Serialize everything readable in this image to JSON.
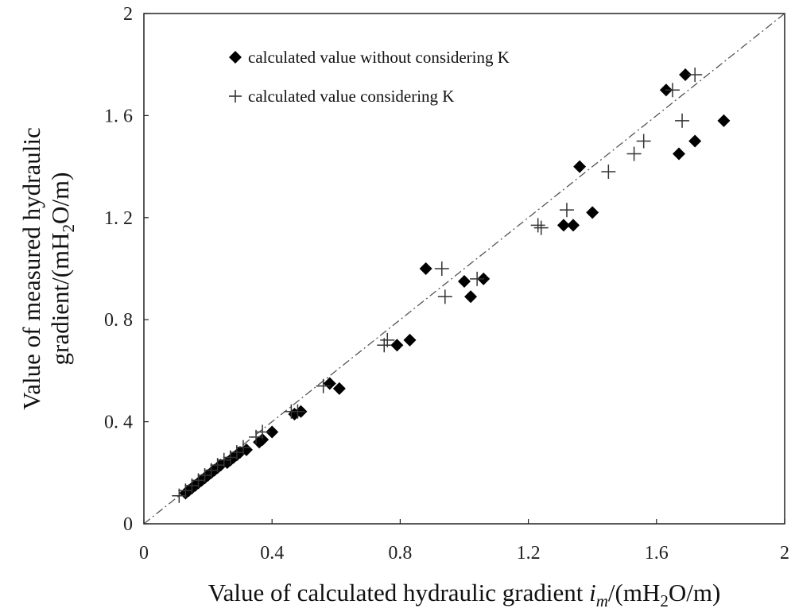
{
  "chart_data": {
    "type": "scatter",
    "xlabel_parts": {
      "prefix": "Value of calculated hydraulic gradient ",
      "var": "i",
      "var_sub": "m",
      "mid": "/(mH",
      "sub": "2",
      "suffix": "O/m)"
    },
    "ylabel_line1": "Value of measured hydraulic",
    "ylabel_line2_parts": {
      "prefix": "gradient/(mH",
      "sub": "2",
      "suffix": "O/m)"
    },
    "xlim": [
      0,
      2
    ],
    "ylim": [
      0,
      2
    ],
    "x_ticks": [
      {
        "value": 0,
        "label": "0"
      },
      {
        "value": 0.4,
        "label": "0.4"
      },
      {
        "value": 0.8,
        "label": "0.8"
      },
      {
        "value": 1.2,
        "label": "1.2"
      },
      {
        "value": 1.6,
        "label": "1.6"
      },
      {
        "value": 2,
        "label": "2"
      }
    ],
    "y_ticks": [
      {
        "value": 0,
        "label": "0"
      },
      {
        "value": 0.4,
        "label": "0. 4"
      },
      {
        "value": 0.8,
        "label": "0. 8"
      },
      {
        "value": 1.2,
        "label": "1. 2"
      },
      {
        "value": 1.6,
        "label": "1. 6"
      },
      {
        "value": 2,
        "label": "2"
      }
    ],
    "reference_line": {
      "style": "dash-dot",
      "from": [
        0,
        0
      ],
      "to": [
        2,
        2
      ]
    },
    "legend_position": "top-left",
    "series": [
      {
        "name": "calculated value without considering K",
        "marker": "diamond",
        "points": [
          [
            0.13,
            0.12
          ],
          [
            0.14,
            0.13
          ],
          [
            0.15,
            0.14
          ],
          [
            0.16,
            0.15
          ],
          [
            0.17,
            0.16
          ],
          [
            0.18,
            0.17
          ],
          [
            0.19,
            0.18
          ],
          [
            0.2,
            0.19
          ],
          [
            0.21,
            0.2
          ],
          [
            0.22,
            0.21
          ],
          [
            0.23,
            0.22
          ],
          [
            0.24,
            0.23
          ],
          [
            0.26,
            0.24
          ],
          [
            0.27,
            0.25
          ],
          [
            0.28,
            0.26
          ],
          [
            0.29,
            0.27
          ],
          [
            0.3,
            0.28
          ],
          [
            0.32,
            0.29
          ],
          [
            0.36,
            0.32
          ],
          [
            0.37,
            0.33
          ],
          [
            0.4,
            0.36
          ],
          [
            0.47,
            0.43
          ],
          [
            0.49,
            0.44
          ],
          [
            0.58,
            0.55
          ],
          [
            0.61,
            0.53
          ],
          [
            0.79,
            0.7
          ],
          [
            0.83,
            0.72
          ],
          [
            0.88,
            1.0
          ],
          [
            1.0,
            0.95
          ],
          [
            1.02,
            0.89
          ],
          [
            1.06,
            0.96
          ],
          [
            1.31,
            1.17
          ],
          [
            1.34,
            1.17
          ],
          [
            1.36,
            1.4
          ],
          [
            1.4,
            1.22
          ],
          [
            1.63,
            1.7
          ],
          [
            1.67,
            1.45
          ],
          [
            1.69,
            1.76
          ],
          [
            1.72,
            1.5
          ],
          [
            1.81,
            1.58
          ]
        ]
      },
      {
        "name": "calculated value considering K",
        "marker": "plus",
        "points": [
          [
            0.11,
            0.11
          ],
          [
            0.13,
            0.13
          ],
          [
            0.15,
            0.15
          ],
          [
            0.17,
            0.17
          ],
          [
            0.19,
            0.19
          ],
          [
            0.21,
            0.21
          ],
          [
            0.23,
            0.23
          ],
          [
            0.25,
            0.25
          ],
          [
            0.27,
            0.26
          ],
          [
            0.29,
            0.28
          ],
          [
            0.31,
            0.3
          ],
          [
            0.35,
            0.34
          ],
          [
            0.37,
            0.36
          ],
          [
            0.46,
            0.44
          ],
          [
            0.48,
            0.44
          ],
          [
            0.56,
            0.54
          ],
          [
            0.75,
            0.7
          ],
          [
            0.76,
            0.72
          ],
          [
            0.93,
            1.0
          ],
          [
            0.94,
            0.89
          ],
          [
            1.04,
            0.96
          ],
          [
            1.23,
            1.17
          ],
          [
            1.24,
            1.16
          ],
          [
            1.32,
            1.23
          ],
          [
            1.45,
            1.38
          ],
          [
            1.53,
            1.45
          ],
          [
            1.56,
            1.5
          ],
          [
            1.65,
            1.7
          ],
          [
            1.68,
            1.58
          ],
          [
            1.72,
            1.76
          ]
        ]
      }
    ]
  }
}
